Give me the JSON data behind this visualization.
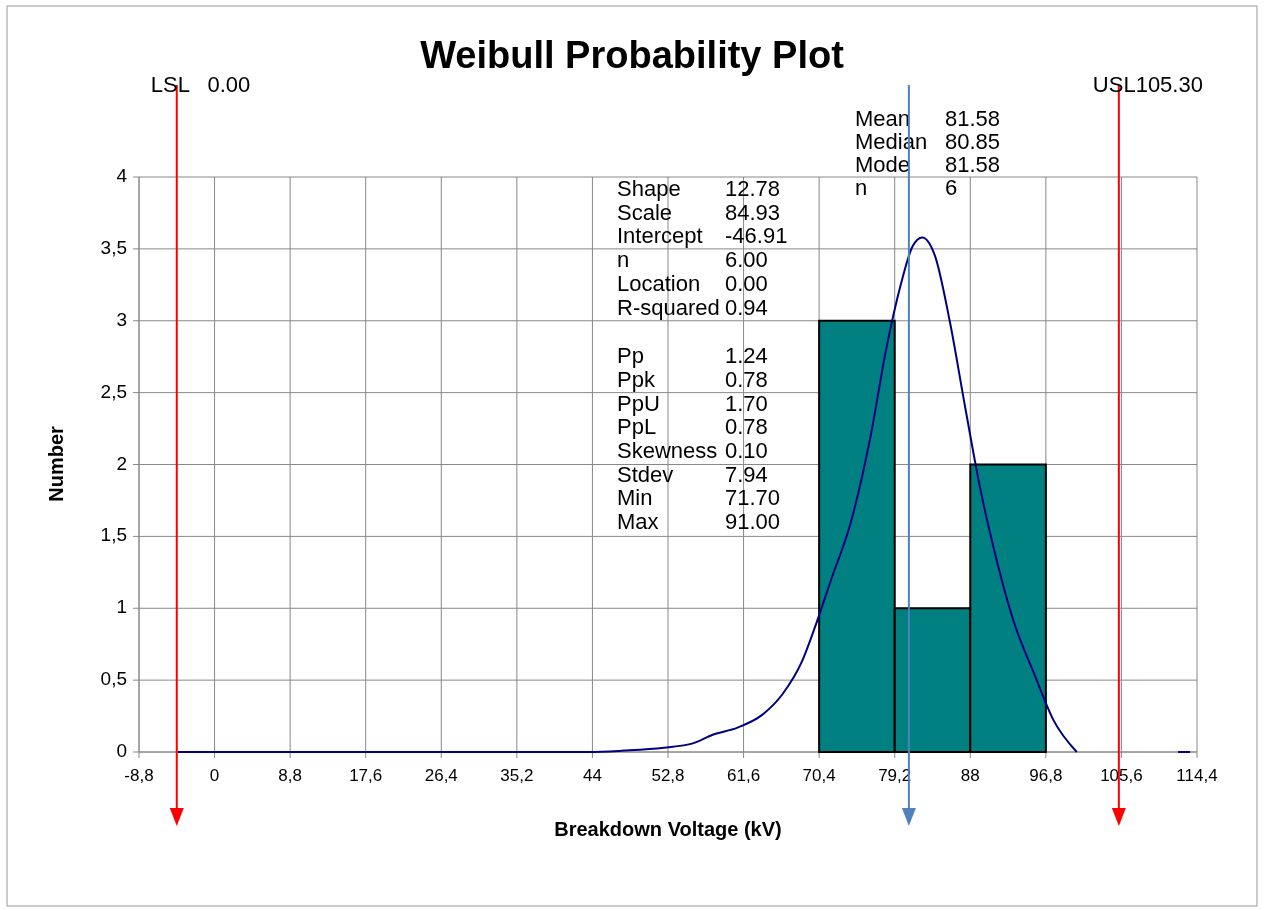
{
  "chart_data": {
    "type": "histogram",
    "title": "Weibull Probability Plot",
    "xlabel": "Breakdown Voltage (kV)",
    "ylabel": "Number",
    "bins": [
      70.4,
      79.2,
      88,
      96.8
    ],
    "values": [
      3,
      1,
      2
    ],
    "color": "#008080",
    "series": [
      {
        "type": "line",
        "color": "#000080",
        "x": [
          -4.3,
          43.7,
          47.7,
          52.3,
          55.7,
          58,
          60.9,
          63.8,
          66.1,
          68.4,
          70.1,
          71.8,
          74.1,
          76.4,
          78.2,
          79.9,
          81.3,
          82.4,
          83.9,
          85.6,
          87.4,
          89.1,
          90.8,
          93.1,
          95.4,
          97.7,
          100.4,
          106,
          112.2,
          113.6
        ],
        "values": [
          0,
          0,
          0.01,
          0.03,
          0.06,
          0.12,
          0.17,
          0.26,
          0.4,
          0.63,
          0.9,
          1.2,
          1.6,
          2.2,
          2.8,
          3.25,
          3.52,
          3.58,
          3.45,
          3,
          2.4,
          1.85,
          1.4,
          0.9,
          0.55,
          0.22,
          0,
          null,
          0,
          0
        ]
      }
    ],
    "xlim": [
      -8.8,
      114.4
    ],
    "xticks": [
      {
        "value": -8.8,
        "label": "-8,8"
      },
      0,
      {
        "value": 8.8,
        "label": "8,8"
      },
      {
        "value": 17.6,
        "label": "17,6"
      },
      {
        "value": 26.4,
        "label": "26,4"
      },
      {
        "value": 35.2,
        "label": "35,2"
      },
      44,
      {
        "value": 52.8,
        "label": "52,8"
      },
      {
        "value": 61.6,
        "label": "61,6"
      },
      {
        "value": 70.4,
        "label": "70,4"
      },
      {
        "value": 79.2,
        "label": "79,2"
      },
      88,
      {
        "value": 96.8,
        "label": "96,8"
      },
      {
        "value": 105.6,
        "label": "105,6"
      },
      {
        "value": 114.4,
        "label": "114,4"
      }
    ],
    "ylim": [
      0,
      4
    ],
    "yticks": [
      0,
      {
        "value": 0.5,
        "label": "0,5"
      },
      1,
      {
        "value": 1.5,
        "label": "1,5"
      },
      2,
      {
        "value": 2.5,
        "label": "2,5"
      },
      3,
      {
        "value": 3.5,
        "label": "3,5"
      },
      4
    ],
    "grid": true,
    "ref_lines": [
      {
        "axis": "x",
        "value": -4.4,
        "label": "LSL   0.00",
        "color": "#ff0000"
      },
      {
        "axis": "x",
        "value": 105.3,
        "label": "USL105.30",
        "color": "#ff0000"
      },
      {
        "axis": "x",
        "value": 80.85,
        "color": "#4f81bd"
      }
    ],
    "annotations": [
      "Mean 81.58",
      "Median 80.85",
      "Mode 81.58",
      "n 6",
      "Shape 12.78",
      "Scale 84.93",
      "Intercept -46.91",
      "n 6.00",
      "Location 0.00",
      "R-squared 0.94",
      "Pp 1.24",
      "Ppk 0.78",
      "PpU 1.70",
      "PpL 0.78",
      "Skewness 0.10",
      "Stdev 7.94",
      "Min 71.70",
      "Max 91.00"
    ]
  }
}
